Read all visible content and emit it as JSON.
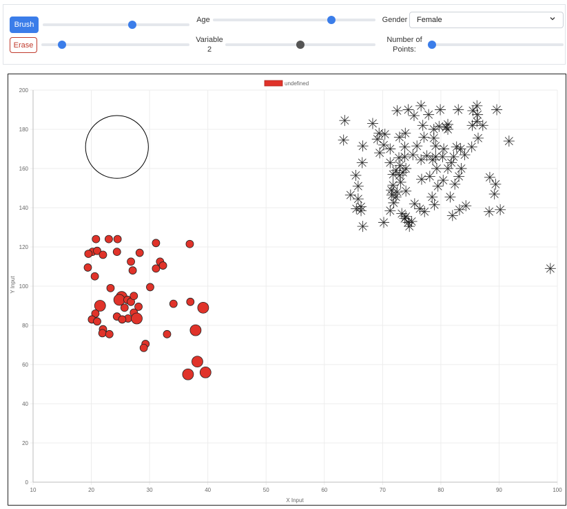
{
  "controls": {
    "brush_label": "Brush",
    "erase_label": "Erase",
    "age_label": "Age",
    "gender_label": "Gender",
    "gender_value": "Female",
    "variable2_label_line1": "Variable",
    "variable2_label_line2": "2",
    "num_points_label_line1": "Number of",
    "num_points_label_line2": "Points:",
    "sliders": {
      "brush_size": 0.61,
      "erase_size": 0.14,
      "age": 0.73,
      "variable2": 0.5,
      "num_points": 0.02
    }
  },
  "colors": {
    "accent": "#3b7de9",
    "erase": "#c0392b",
    "red_points": "#e0332a",
    "star_points": "#000000"
  },
  "chart_data": {
    "type": "scatter",
    "legend": {
      "label": "undefined",
      "color": "#e0332a",
      "position": "top"
    },
    "xlabel": "X Input",
    "ylabel": "Y Input",
    "xlim": [
      10,
      100
    ],
    "ylim": [
      0,
      200
    ],
    "xticks": [
      10,
      20,
      30,
      40,
      50,
      60,
      70,
      80,
      90,
      100
    ],
    "yticks": [
      0,
      20,
      40,
      60,
      80,
      100,
      120,
      140,
      160,
      180,
      200
    ],
    "grid": true,
    "brush_cursor": {
      "x": 24.4,
      "y": 171,
      "radius": 16
    },
    "series": [
      {
        "marker": "circle",
        "color": "#e0332a",
        "points": [
          [
            20.8,
            124
          ],
          [
            24.5,
            124
          ],
          [
            23,
            124
          ],
          [
            31.1,
            122
          ],
          [
            36.9,
            121.5
          ],
          [
            20.2,
            117.5
          ],
          [
            21,
            118
          ],
          [
            19.5,
            116.5
          ],
          [
            22,
            116
          ],
          [
            24.4,
            117.5
          ],
          [
            28.3,
            117
          ],
          [
            26.8,
            112.5
          ],
          [
            31.8,
            112.5
          ],
          [
            32.3,
            110.5
          ],
          [
            31.1,
            109
          ],
          [
            19.4,
            109.5
          ],
          [
            27.1,
            108
          ],
          [
            20.6,
            105
          ],
          [
            23.3,
            99
          ],
          [
            30.1,
            99.5
          ],
          [
            25.2,
            94.5,
            "L"
          ],
          [
            24.8,
            93,
            "L"
          ],
          [
            26.2,
            93
          ],
          [
            26.8,
            92
          ],
          [
            27.3,
            95
          ],
          [
            34.1,
            91
          ],
          [
            37,
            92
          ],
          [
            21.5,
            90,
            "L"
          ],
          [
            39.2,
            89,
            "L"
          ],
          [
            25.7,
            89
          ],
          [
            28.1,
            89.5
          ],
          [
            20.7,
            86
          ],
          [
            27.3,
            86.5
          ],
          [
            26.3,
            83.5
          ],
          [
            27.8,
            83.5,
            "L"
          ],
          [
            20.1,
            83
          ],
          [
            21,
            82
          ],
          [
            24.4,
            84.5
          ],
          [
            25.3,
            83
          ],
          [
            22,
            78
          ],
          [
            37.9,
            77.5,
            "L"
          ],
          [
            21.9,
            76
          ],
          [
            23.1,
            75.5
          ],
          [
            33,
            75.5
          ],
          [
            29.3,
            70.5
          ],
          [
            29,
            68.5
          ],
          [
            38.2,
            61.5,
            "L"
          ],
          [
            36.6,
            55,
            "L"
          ],
          [
            39.6,
            56,
            "L"
          ]
        ]
      },
      {
        "marker": "star",
        "color": "#000000",
        "points": [
          [
            76.6,
            192
          ],
          [
            86.2,
            192
          ],
          [
            72.5,
            189.5
          ],
          [
            74.4,
            190
          ],
          [
            79.9,
            190
          ],
          [
            83,
            190
          ],
          [
            85.5,
            189.5
          ],
          [
            89.6,
            190
          ],
          [
            77.9,
            187.5
          ],
          [
            86.3,
            187.5
          ],
          [
            75.4,
            187
          ],
          [
            63.5,
            184.5
          ],
          [
            86.2,
            184
          ],
          [
            68.3,
            183
          ],
          [
            81.2,
            182.5
          ],
          [
            85.4,
            182
          ],
          [
            76.9,
            182
          ],
          [
            79.7,
            181.5
          ],
          [
            80.9,
            181
          ],
          [
            81.2,
            180
          ],
          [
            87.2,
            182
          ],
          [
            78.8,
            180
          ],
          [
            69.4,
            178
          ],
          [
            70.4,
            177.5
          ],
          [
            73.9,
            178
          ],
          [
            72.9,
            176
          ],
          [
            77.1,
            176
          ],
          [
            78.8,
            175.5
          ],
          [
            69.1,
            175
          ],
          [
            86.4,
            175.5
          ],
          [
            63.3,
            174.5
          ],
          [
            91.7,
            174
          ],
          [
            70.2,
            172
          ],
          [
            75.9,
            171.5
          ],
          [
            73.8,
            171
          ],
          [
            79.1,
            171.5
          ],
          [
            82.7,
            171
          ],
          [
            85.3,
            171
          ],
          [
            66.6,
            171.5
          ],
          [
            71.3,
            170
          ],
          [
            80.5,
            170
          ],
          [
            83.4,
            170
          ],
          [
            69.5,
            168
          ],
          [
            75.2,
            167
          ],
          [
            77.6,
            166.5
          ],
          [
            79.1,
            166
          ],
          [
            80.3,
            166
          ],
          [
            82.2,
            166
          ],
          [
            84.1,
            167
          ],
          [
            73.8,
            166
          ],
          [
            72.8,
            165.5
          ],
          [
            76.6,
            164.5
          ],
          [
            78.6,
            164.5
          ],
          [
            81.8,
            163
          ],
          [
            66.5,
            163
          ],
          [
            71.3,
            163
          ],
          [
            73,
            161.5
          ],
          [
            79.3,
            160
          ],
          [
            81.2,
            160
          ],
          [
            83.5,
            160
          ],
          [
            74,
            160
          ],
          [
            72.3,
            159
          ],
          [
            73.5,
            158
          ],
          [
            65.4,
            156.5
          ],
          [
            71.8,
            157
          ],
          [
            72.9,
            156.5
          ],
          [
            78.1,
            156
          ],
          [
            83.1,
            156
          ],
          [
            88.4,
            155.5
          ],
          [
            76.7,
            154.5
          ],
          [
            80.4,
            154
          ],
          [
            73.1,
            153
          ],
          [
            71.8,
            151.5
          ],
          [
            65.8,
            151
          ],
          [
            82.4,
            152
          ],
          [
            89.4,
            152
          ],
          [
            79.5,
            151
          ],
          [
            71.5,
            149
          ],
          [
            72.5,
            148
          ],
          [
            74,
            148.5
          ],
          [
            64.5,
            146.5
          ],
          [
            71.6,
            146.5
          ],
          [
            89.2,
            147
          ],
          [
            72.3,
            145.5
          ],
          [
            78.5,
            145.5
          ],
          [
            81.6,
            145.5
          ],
          [
            65.8,
            144.5
          ],
          [
            71.9,
            142.5
          ],
          [
            75.5,
            142
          ],
          [
            78.9,
            141.5
          ],
          [
            66.3,
            140.5
          ],
          [
            84.3,
            141
          ],
          [
            65.5,
            139.5
          ],
          [
            66.3,
            138.5
          ],
          [
            71.3,
            138.5
          ],
          [
            76.4,
            139.5
          ],
          [
            83.2,
            139
          ],
          [
            88.3,
            138
          ],
          [
            90.2,
            139
          ],
          [
            77.2,
            138
          ],
          [
            73.3,
            137
          ],
          [
            74,
            135.5
          ],
          [
            82,
            136
          ],
          [
            73.8,
            134.5
          ],
          [
            75,
            133
          ],
          [
            74.4,
            132.5
          ],
          [
            70.2,
            132.5
          ],
          [
            66.6,
            130.5
          ],
          [
            74.6,
            130.5
          ],
          [
            98.8,
            109
          ]
        ]
      }
    ]
  }
}
